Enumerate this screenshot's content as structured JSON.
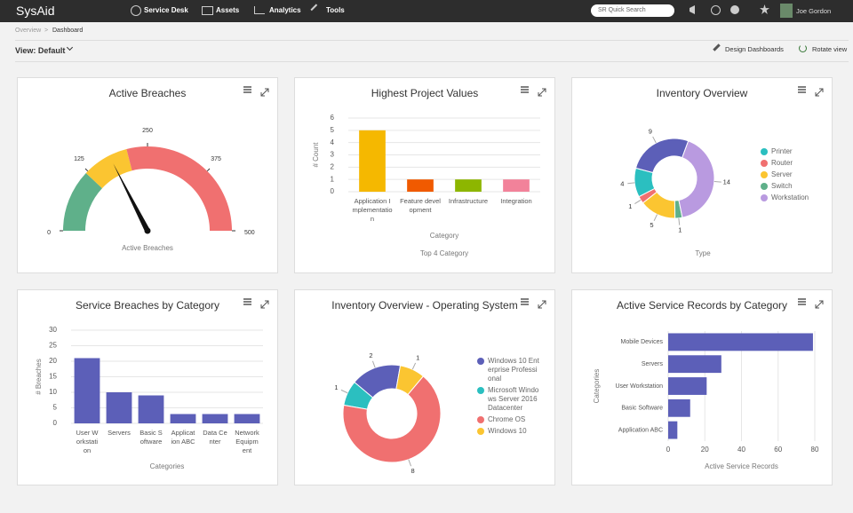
{
  "nav": {
    "logo": "SysAid",
    "menu": [
      "Service Desk",
      "Assets",
      "Analytics",
      "Tools"
    ],
    "search": "SR Quick Search",
    "user": "Joe Gordon"
  },
  "breadcrumb": [
    "Overview",
    "Dashboard"
  ],
  "toolbar": {
    "view": "View: Default",
    "actions": [
      "Design Dashboards",
      "Rotate view"
    ]
  },
  "chart_data": [
    {
      "type": "gauge",
      "title": "Active Breaches",
      "value": 175,
      "ylim": [
        0,
        500
      ],
      "yticks": [
        0,
        125,
        250,
        375,
        500
      ],
      "bands": [
        {
          "from": 0,
          "to": 120,
          "color": "#5fb08a"
        },
        {
          "from": 120,
          "to": 210,
          "color": "#fbc531"
        },
        {
          "from": 210,
          "to": 500,
          "color": "#f07070"
        }
      ],
      "subtitle": "Active Breaches"
    },
    {
      "type": "bar",
      "title": "Highest Project Values",
      "categories": [
        "Application Implementation",
        "Feature development",
        "Infrastructure",
        "Integration"
      ],
      "values": [
        5,
        1,
        1,
        1
      ],
      "colors": [
        "#f5b800",
        "#f05a00",
        "#8db600",
        "#f2829a"
      ],
      "ylim": [
        0,
        6
      ],
      "yticks": [
        0,
        1,
        2,
        3,
        4,
        5,
        6
      ],
      "ylabel": "# Count",
      "xlabel": "Category",
      "subtitle": "Top 4 Category",
      "grid": true
    },
    {
      "type": "donut",
      "title": "Inventory Overview",
      "categories": [
        "Printer",
        "Router",
        "Server",
        "Switch",
        "Workstation",
        null
      ],
      "values": [
        4,
        1,
        5,
        1,
        14,
        9
      ],
      "colors": [
        "#2bbfc0",
        "#f07070",
        "#fbc531",
        "#5fb08a",
        "#b99ae0",
        "#5c5fb8"
      ],
      "xlabel": "Type"
    },
    {
      "type": "bar",
      "title": "Service Breaches by Category",
      "categories": [
        "User Workstation",
        "Servers",
        "Basic Software",
        "Application ABC",
        "Data Center",
        "Network Equipment"
      ],
      "values": [
        21,
        10,
        9,
        3,
        3,
        3
      ],
      "color": "#5c5fb8",
      "ylim": [
        0,
        30
      ],
      "yticks": [
        0,
        5,
        10,
        15,
        20,
        25,
        30
      ],
      "ylabel": "# Breaches",
      "xlabel": "Categories",
      "grid": true
    },
    {
      "type": "donut",
      "title": "Inventory Overview - Operating System",
      "categories": [
        "Windows 10 Enterprise Professional",
        "Microsoft Windows Server 2016 Datacenter",
        "Chrome OS",
        "Windows 10"
      ],
      "values": [
        2,
        1,
        8,
        1
      ],
      "colors": [
        "#5c5fb8",
        "#2bbfc0",
        "#f07070",
        "#fbc531"
      ]
    },
    {
      "type": "hbar",
      "title": "Active Service Records by Category",
      "categories": [
        "Mobile Devices",
        "Servers",
        "User Workstation",
        "Basic Software",
        "Application ABC"
      ],
      "values": [
        79,
        29,
        21,
        12,
        5
      ],
      "color": "#5c5fb8",
      "xlim": [
        0,
        80
      ],
      "xticks": [
        0,
        20,
        40,
        60,
        80
      ],
      "xlabel": "Active Service Records",
      "ylabel": "Categories",
      "grid": true
    }
  ]
}
